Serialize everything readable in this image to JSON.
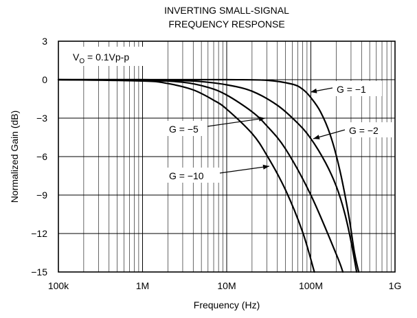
{
  "chart_data": {
    "type": "line",
    "title_line1": "INVERTING SMALL-SIGNAL",
    "title_line2": "FREQUENCY RESPONSE",
    "xlabel": "Frequency (Hz)",
    "ylabel": "Normalized Gain (dB)",
    "x_scale": "log",
    "xlim": [
      100000,
      1000000000
    ],
    "ylim": [
      -15,
      3
    ],
    "x_ticks": [
      {
        "value": 100000,
        "label": "100k"
      },
      {
        "value": 1000000,
        "label": "1M"
      },
      {
        "value": 10000000,
        "label": "10M"
      },
      {
        "value": 100000000,
        "label": "100M"
      },
      {
        "value": 1000000000,
        "label": "1G"
      }
    ],
    "y_ticks": [
      {
        "value": 3,
        "label": "3"
      },
      {
        "value": 0,
        "label": "0"
      },
      {
        "value": -3,
        "label": "−3"
      },
      {
        "value": -6,
        "label": "−6"
      },
      {
        "value": -9,
        "label": "−9"
      },
      {
        "value": -12,
        "label": "−12"
      },
      {
        "value": -15,
        "label": "−15"
      }
    ],
    "grid": true,
    "condition": {
      "main": "V",
      "sub": "O",
      "rest": " = 0.1Vp-p"
    },
    "series": [
      {
        "name": "G = −1",
        "x": [
          100000,
          1000000,
          10000000,
          30000000,
          60000000,
          80000000,
          100000000,
          130000000,
          170000000,
          220000000,
          280000000,
          330000000,
          370000000
        ],
        "y": [
          0,
          0,
          0,
          -0.05,
          -0.35,
          -0.75,
          -1.4,
          -2.5,
          -4.3,
          -7.0,
          -10.5,
          -13.5,
          -15
        ]
      },
      {
        "name": "G = −2",
        "x": [
          100000,
          1000000,
          2500000,
          5000000,
          10000000,
          20000000,
          40000000,
          70000000,
          100000000,
          150000000,
          200000000,
          250000000,
          300000000,
          350000000
        ],
        "y": [
          0,
          0,
          -0.05,
          -0.15,
          -0.4,
          -0.9,
          -2.0,
          -3.4,
          -4.6,
          -6.5,
          -8.3,
          -10.3,
          -12.6,
          -15
        ]
      },
      {
        "name": "G = −5",
        "x": [
          100000,
          1000000,
          3000000,
          6000000,
          10000000,
          20000000,
          30000000,
          50000000,
          100000000,
          200000000,
          240000000
        ],
        "y": [
          0,
          -0.05,
          -0.2,
          -0.6,
          -1.2,
          -2.5,
          -3.6,
          -5.4,
          -9.0,
          -13.6,
          -15
        ]
      },
      {
        "name": "G = −10",
        "x": [
          100000,
          1000000,
          2000000,
          4000000,
          7000000,
          10000000,
          20000000,
          30000000,
          50000000,
          80000000,
          110000000
        ],
        "y": [
          0,
          -0.1,
          -0.3,
          -0.8,
          -1.6,
          -2.3,
          -4.2,
          -5.9,
          -8.6,
          -11.9,
          -15
        ]
      }
    ],
    "annotations": [
      {
        "series": "G = −1",
        "text": "G = −1"
      },
      {
        "series": "G = −2",
        "text": "G = −2"
      },
      {
        "series": "G = −5",
        "text": "G = −5"
      },
      {
        "series": "G = −10",
        "text": "G = −10"
      }
    ]
  }
}
